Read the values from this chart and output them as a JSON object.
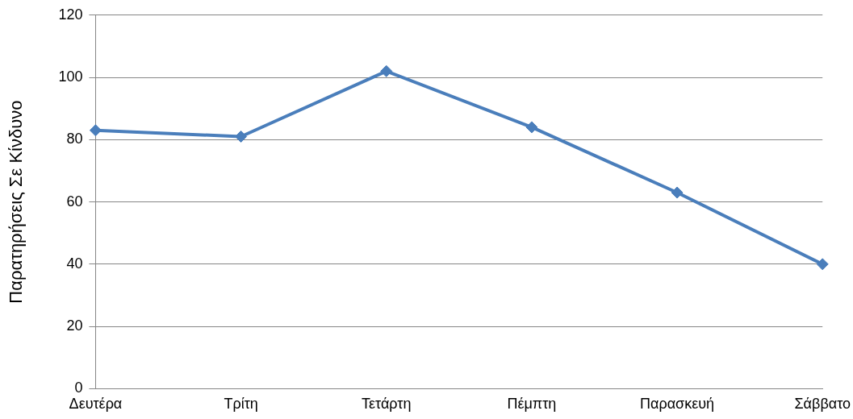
{
  "chart_data": {
    "type": "line",
    "ylabel": "Παρατηρήσεις Σε Κίνδυνο",
    "categories": [
      "Δευτέρα",
      "Τρίτη",
      "Τετάρτη",
      "Πέμπτη",
      "Παρασκευή",
      "Σάββατο"
    ],
    "series": [
      {
        "color": "#4a7ebb",
        "values": [
          83,
          81,
          102,
          84,
          63,
          40
        ]
      }
    ],
    "ylim": [
      0,
      120
    ],
    "yticks": [
      0,
      20,
      40,
      60,
      80,
      100,
      120
    ],
    "grid": "y",
    "legend": false,
    "marker": "diamond",
    "line_style": "solid"
  }
}
